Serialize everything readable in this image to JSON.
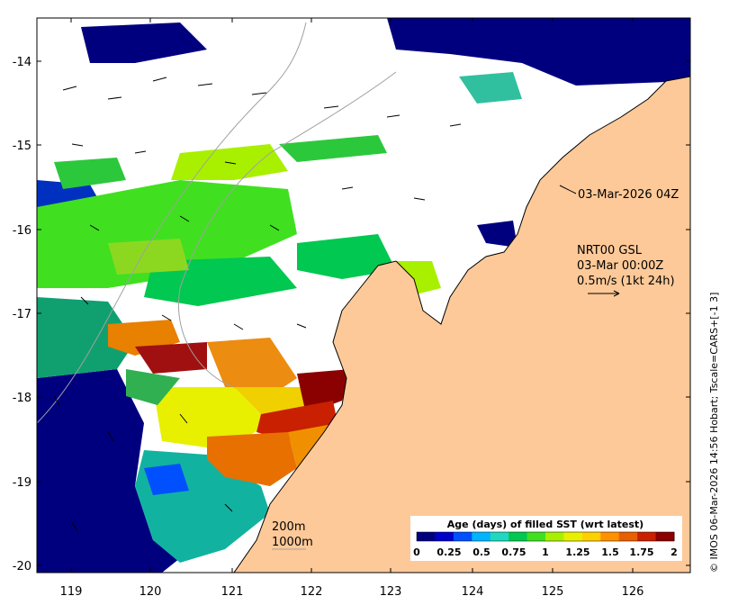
{
  "map": {
    "x_ticks": [
      "119",
      "120",
      "121",
      "122",
      "123",
      "124",
      "125",
      "126"
    ],
    "y_ticks": [
      "-14",
      "-15",
      "-16",
      "-17",
      "-18",
      "-19",
      "-20"
    ],
    "annotations": {
      "image_time": "03-Mar-2026 04Z",
      "current_model": "NRT00 GSL",
      "current_time": "03-Mar 00:00Z",
      "vector_scale": "0.5m/s (1kt 24h)",
      "isobath_200": "200m",
      "isobath_1000": "1000m"
    },
    "colorbar": {
      "title": "Age (days) of filled SST (wrt latest)",
      "ticks": [
        "0",
        "0.25",
        "0.5",
        "0.75",
        "1",
        "1.25",
        "1.5",
        "1.75",
        "2"
      ],
      "colors": [
        "#00007f",
        "#0000c8",
        "#0050ff",
        "#00b4ff",
        "#20d8c0",
        "#00c850",
        "#40e020",
        "#a8f000",
        "#e8f000",
        "#ffd000",
        "#ff9000",
        "#e86000",
        "#c82000",
        "#8b0000"
      ]
    },
    "colors": {
      "land": "#fdc998",
      "no_data": "#ffffff",
      "coastline": "#000000",
      "isobath": "#a0a0a0"
    },
    "credit": "© IMOS 06-Mar-2026 14:56 Hobart; Tscale=CARS+[-1 3]"
  }
}
